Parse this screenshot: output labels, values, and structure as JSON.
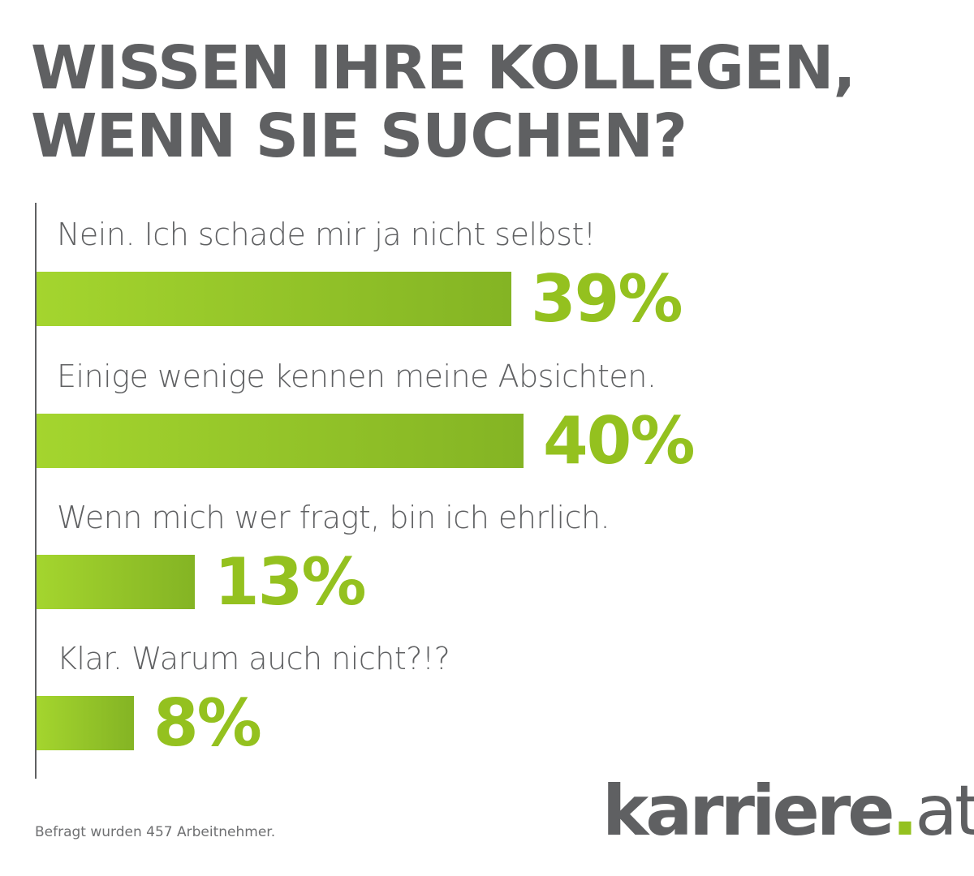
{
  "chart_data": {
    "type": "bar",
    "orientation": "horizontal",
    "title": "WISSEN IHRE KOLLEGEN, WENN SIE SUCHEN?",
    "title_lines": [
      "WISSEN IHRE KOLLEGEN,",
      "WENN SIE SUCHEN?"
    ],
    "categories": [
      "Nein. Ich schade mir ja nicht selbst!",
      "Einige wenige kennen meine Absichten.",
      "Wenn mich wer fragt, bin ich ehrlich.",
      "Klar. Warum auch nicht?!?"
    ],
    "values": [
      39,
      40,
      13,
      8
    ],
    "value_labels": [
      "39%",
      "40%",
      "13%",
      "8%"
    ],
    "unit": "%",
    "xlim": [
      0,
      100
    ],
    "grid": false,
    "colors": {
      "bar_start": "#a4d52e",
      "bar_end": "#84b424",
      "value_text": "#94c11f",
      "text": "#5f6062"
    }
  },
  "footnote": "Befragt wurden 457 Arbeitnehmer.",
  "logo": {
    "name": "karriere",
    "dot": ".",
    "tld": "at"
  }
}
